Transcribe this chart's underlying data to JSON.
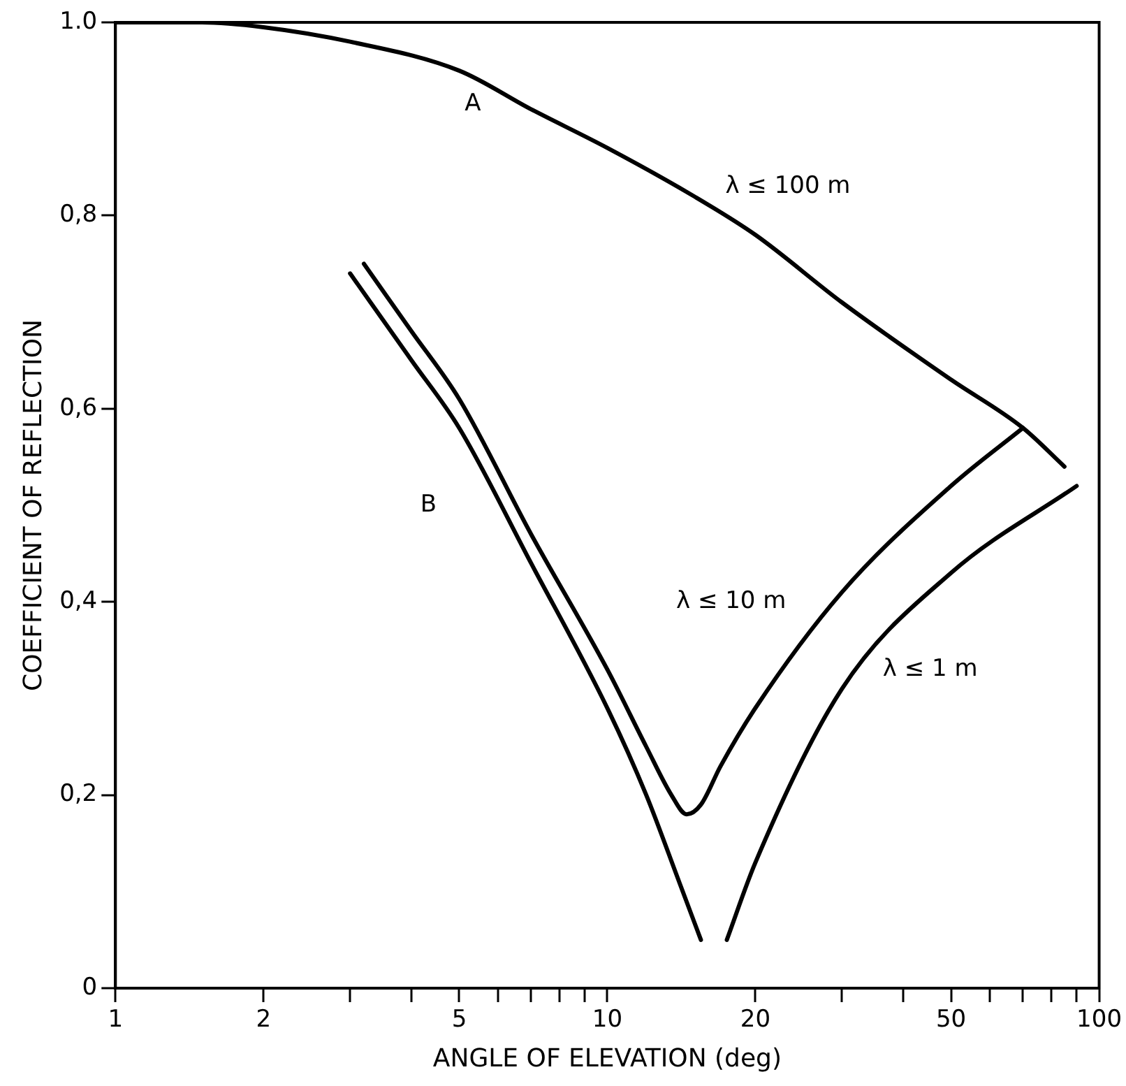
{
  "chart_data": {
    "type": "line",
    "xlabel": "ANGLE OF ELEVATION (deg)",
    "ylabel": "COEFFICIENT OF REFLECTION",
    "log": "x",
    "xlim": [
      1,
      100
    ],
    "ylim": [
      0,
      1
    ],
    "xticks": [
      1,
      2,
      {
        "value": 3,
        "label": null
      },
      {
        "value": 4,
        "label": null
      },
      5,
      {
        "value": 6,
        "label": null
      },
      {
        "value": 7,
        "label": null
      },
      {
        "value": 8,
        "label": null
      },
      {
        "value": 9,
        "label": null
      },
      10,
      20,
      {
        "value": 30,
        "label": null
      },
      {
        "value": 40,
        "label": null
      },
      50,
      {
        "value": 60,
        "label": null
      },
      {
        "value": 70,
        "label": null
      },
      {
        "value": 80,
        "label": null
      },
      {
        "value": 90,
        "label": null
      },
      100
    ],
    "yticks": [
      0,
      {
        "value": 0.2,
        "label": "0,2"
      },
      {
        "value": 0.4,
        "label": "0,4"
      },
      {
        "value": 0.6,
        "label": "0,6"
      },
      {
        "value": 0.8,
        "label": "0,8"
      },
      {
        "value": 1,
        "label": "1.0"
      }
    ],
    "marker": "none",
    "line_style": "solid",
    "series": [
      {
        "name": "λ ≤ 100 m",
        "color": "#000000",
        "x": [
          1,
          1.5,
          2,
          3,
          5,
          7,
          10,
          15,
          20,
          30,
          50,
          70,
          85
        ],
        "values": [
          1.0,
          1.0,
          0.995,
          0.98,
          0.95,
          0.91,
          0.87,
          0.82,
          0.78,
          0.71,
          0.63,
          0.58,
          0.54
        ]
      },
      {
        "name": "λ ≤ 10 m",
        "color": "#000000",
        "x": [
          3.2,
          4,
          5,
          7,
          10,
          12,
          13.5,
          14.5,
          15.5,
          17,
          20,
          30,
          50,
          70
        ],
        "values": [
          0.75,
          0.68,
          0.61,
          0.47,
          0.33,
          0.25,
          0.2,
          0.18,
          0.19,
          0.23,
          0.29,
          0.41,
          0.52,
          0.58
        ]
      },
      {
        "name": "λ ≤ 1 m",
        "color": "#000000",
        "x": [
          3,
          4,
          5,
          7,
          10,
          12,
          14,
          15.5,
          16.5,
          17.5,
          20,
          30,
          50,
          90
        ],
        "values": [
          0.74,
          0.65,
          0.58,
          0.44,
          0.29,
          0.2,
          0.11,
          0.05,
          null,
          0.05,
          0.13,
          0.31,
          0.43,
          0.52
        ]
      }
    ],
    "annotations": [
      "A",
      "B"
    ]
  }
}
